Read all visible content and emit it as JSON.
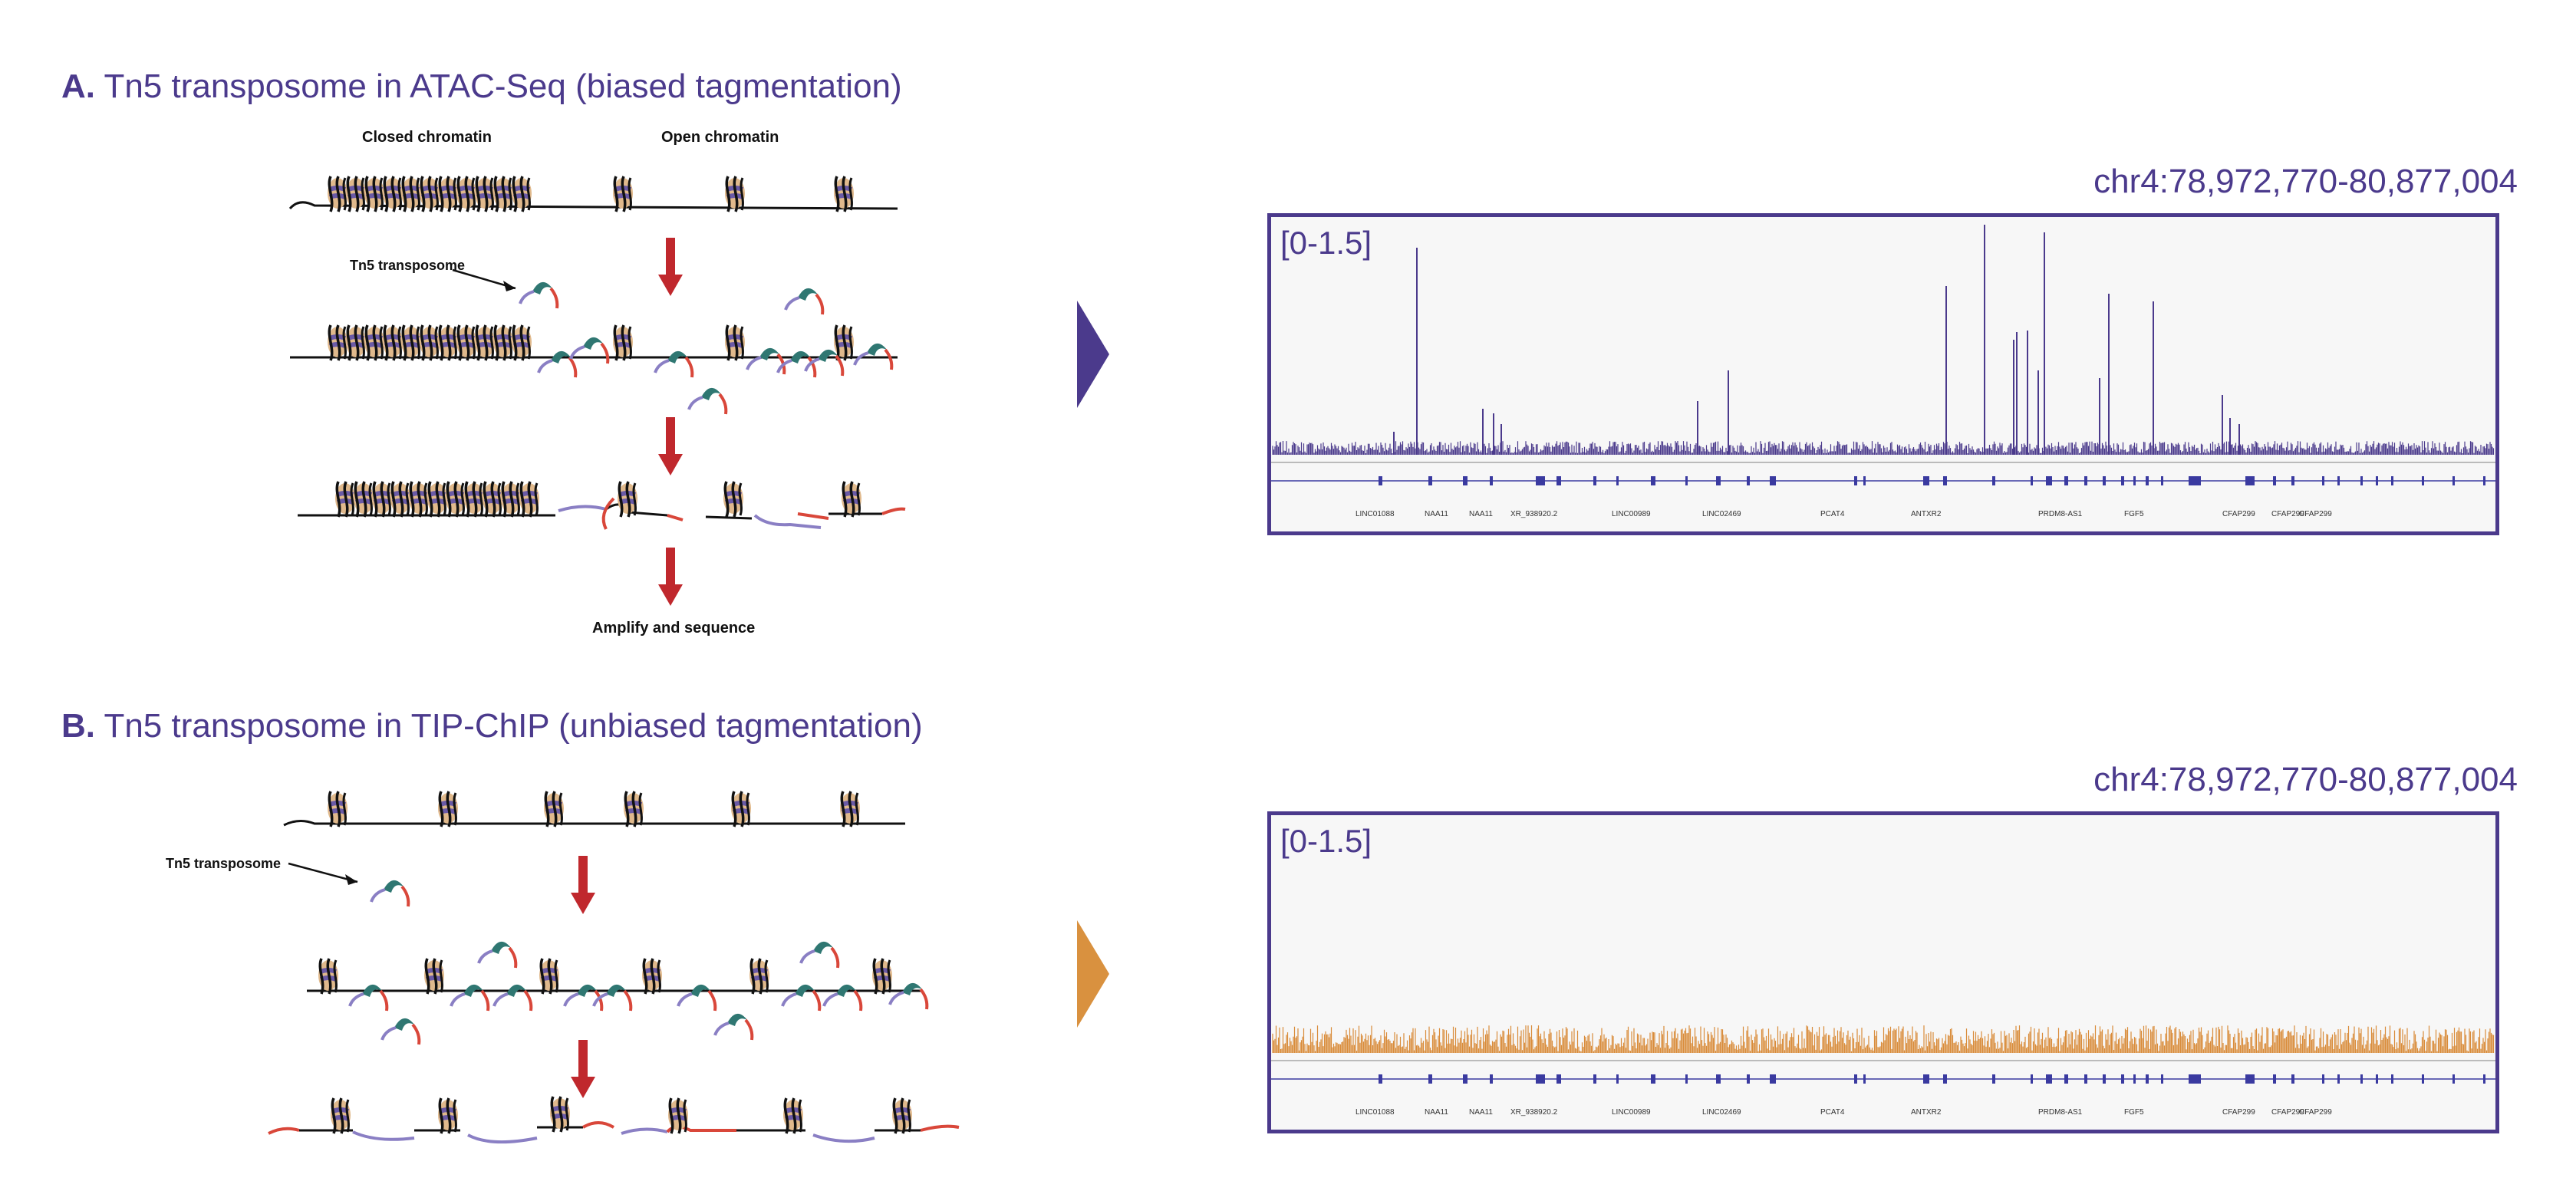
{
  "panel_a": {
    "letter": "A.",
    "title": "Tn5 transposome in ATAC-Seq (biased tagmentation)",
    "closed_label": "Closed chromatin",
    "open_label": "Open chromatin",
    "tn5_label": "Tn5 transposome",
    "amplify_label": "Amplify and sequence",
    "locus": "chr4:78,972,770-80,877,004",
    "range": "[0-1.5]",
    "track_color": "#4b3a8c",
    "arrow_color": "#4b3a8c"
  },
  "panel_b": {
    "letter": "B.",
    "title": "Tn5 transposome in TIP-ChIP (unbiased tagmentation)",
    "tn5_label": "Tn5 transposome",
    "locus": "chr4:78,972,770-80,877,004",
    "range": "[0-1.5]",
    "track_color": "#d98c3a",
    "arrow_color": "#d9913f"
  },
  "genes": [
    "LINC01088",
    "NAA11",
    "NAA11",
    "XR_938920.2",
    "LINC00989",
    "LINC02469",
    "PCAT4",
    "ANTXR2",
    "PRDM8-AS1",
    "FGF5",
    "CFAP299",
    "CFAP299",
    "CFAP299"
  ]
}
